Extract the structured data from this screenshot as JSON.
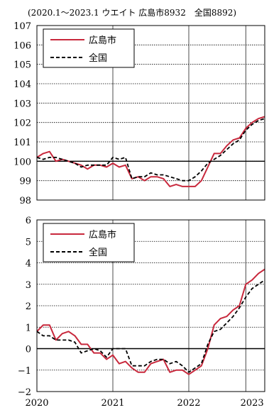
{
  "chart_data": [
    {
      "type": "line",
      "note": "(2020.1～2023.1 ウエイト 広島市8932　全国8892)",
      "y_ticks": [
        "107",
        "106",
        "105",
        "104",
        "103",
        "102",
        "101",
        "100",
        "99",
        "98"
      ],
      "ylim": [
        98,
        107
      ],
      "xlim": [
        0,
        36
      ],
      "grid": true,
      "reference_line": 100,
      "legend_position": "top-left",
      "x": [
        0,
        1,
        2,
        3,
        4,
        5,
        6,
        7,
        8,
        9,
        10,
        11,
        12,
        13,
        14,
        15,
        16,
        17,
        18,
        19,
        20,
        21,
        22,
        23,
        24,
        25,
        26,
        27,
        28,
        29,
        30,
        31,
        32,
        33,
        34,
        35,
        36
      ],
      "series": [
        {
          "name": "広島市",
          "color": "#c8283c",
          "style": "solid",
          "values": [
            100.2,
            100.4,
            100.5,
            100.0,
            100.1,
            100.0,
            99.9,
            99.8,
            99.6,
            99.8,
            99.8,
            99.7,
            99.9,
            99.7,
            99.8,
            99.1,
            99.2,
            99.0,
            99.2,
            99.2,
            99.1,
            98.7,
            98.8,
            98.7,
            98.7,
            98.7,
            99.0,
            99.7,
            100.4,
            100.4,
            100.8,
            101.1,
            101.2,
            101.7,
            102.0,
            102.2,
            102.3
          ]
        },
        {
          "name": "全国",
          "color": "#000000",
          "style": "dashed",
          "values": [
            100.2,
            100.1,
            100.2,
            100.2,
            100.1,
            100.0,
            99.9,
            99.7,
            99.8,
            99.8,
            99.8,
            99.8,
            100.2,
            100.1,
            100.2,
            99.1,
            99.2,
            99.2,
            99.4,
            99.3,
            99.3,
            99.2,
            99.1,
            99.0,
            99.0,
            99.2,
            99.5,
            99.9,
            100.1,
            100.3,
            100.6,
            100.9,
            101.1,
            101.6,
            101.9,
            102.1,
            102.2
          ]
        }
      ]
    },
    {
      "type": "line",
      "y_ticks": [
        "6",
        "5",
        "4",
        "3",
        "2",
        "1",
        "0",
        "−1",
        "−2"
      ],
      "x_ticks": [
        "2020",
        "2021",
        "2022",
        "2023"
      ],
      "ylim": [
        -2,
        6
      ],
      "xlim": [
        0,
        36
      ],
      "grid": true,
      "reference_line": 0,
      "legend_position": "top-left",
      "x": [
        0,
        1,
        2,
        3,
        4,
        5,
        6,
        7,
        8,
        9,
        10,
        11,
        12,
        13,
        14,
        15,
        16,
        17,
        18,
        19,
        20,
        21,
        22,
        23,
        24,
        25,
        26,
        27,
        28,
        29,
        30,
        31,
        32,
        33,
        34,
        35,
        36
      ],
      "series": [
        {
          "name": "広島市",
          "color": "#c8283c",
          "style": "solid",
          "values": [
            0.8,
            1.1,
            1.1,
            0.4,
            0.7,
            0.8,
            0.6,
            0.2,
            0.2,
            -0.2,
            -0.2,
            -0.5,
            -0.3,
            -0.7,
            -0.6,
            -0.9,
            -1.1,
            -1.1,
            -0.7,
            -0.6,
            -0.5,
            -1.1,
            -1.0,
            -1.0,
            -1.2,
            -1.0,
            -0.8,
            0.0,
            1.1,
            1.4,
            1.5,
            1.8,
            2.0,
            3.0,
            3.2,
            3.5,
            3.7
          ]
        },
        {
          "name": "全国",
          "color": "#000000",
          "style": "dashed",
          "values": [
            0.8,
            0.6,
            0.6,
            0.4,
            0.4,
            0.4,
            0.3,
            -0.2,
            -0.1,
            0.0,
            -0.1,
            -0.4,
            0.0,
            0.0,
            0.0,
            -0.8,
            -0.8,
            -0.8,
            -0.6,
            -0.5,
            -0.5,
            -0.7,
            -0.6,
            -0.8,
            -1.1,
            -0.9,
            -0.7,
            0.2,
            0.8,
            0.9,
            1.2,
            1.5,
            1.9,
            2.4,
            2.8,
            3.0,
            3.2
          ]
        }
      ]
    }
  ]
}
